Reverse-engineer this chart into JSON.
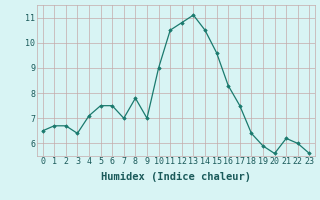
{
  "x": [
    0,
    1,
    2,
    3,
    4,
    5,
    6,
    7,
    8,
    9,
    10,
    11,
    12,
    13,
    14,
    15,
    16,
    17,
    18,
    19,
    20,
    21,
    22,
    23
  ],
  "y": [
    6.5,
    6.7,
    6.7,
    6.4,
    7.1,
    7.5,
    7.5,
    7.0,
    7.8,
    7.0,
    9.0,
    10.5,
    10.8,
    11.1,
    10.5,
    9.6,
    8.3,
    7.5,
    6.4,
    5.9,
    5.6,
    6.2,
    6.0,
    5.6
  ],
  "xlim": [
    -0.5,
    23.5
  ],
  "ylim": [
    5.5,
    11.5
  ],
  "yticks": [
    6,
    7,
    8,
    9,
    10,
    11
  ],
  "xticks": [
    0,
    1,
    2,
    3,
    4,
    5,
    6,
    7,
    8,
    9,
    10,
    11,
    12,
    13,
    14,
    15,
    16,
    17,
    18,
    19,
    20,
    21,
    22,
    23
  ],
  "xlabel": "Humidex (Indice chaleur)",
  "line_color": "#1a7a6e",
  "marker": "D",
  "marker_size": 1.8,
  "bg_color": "#d8f4f4",
  "grid_color": "#c4aaaa",
  "tick_label_fontsize": 6.0,
  "xlabel_fontsize": 7.5
}
